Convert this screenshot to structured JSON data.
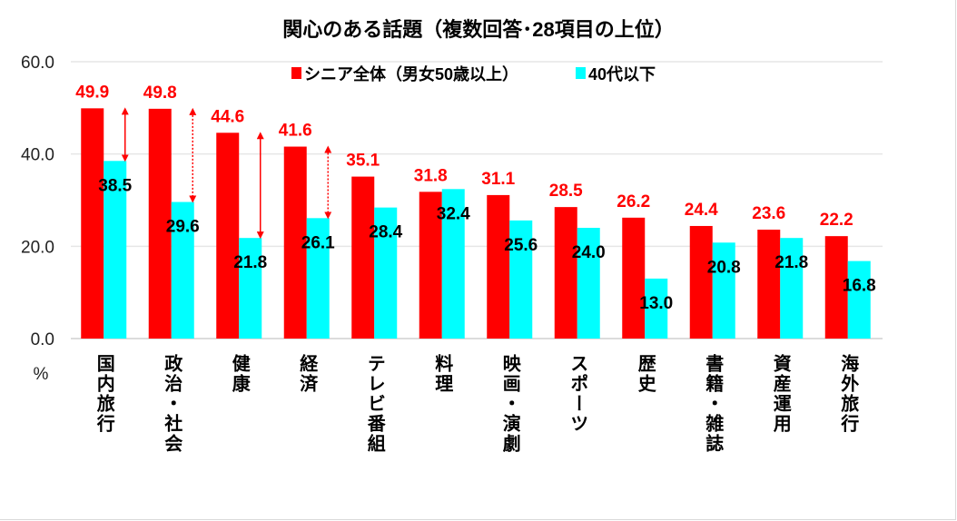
{
  "chart_data": {
    "type": "bar",
    "title": "関心のある話題（複数回答･28項目の上位）",
    "ylabel": "%",
    "ylim": [
      0,
      60
    ],
    "yticks": [
      "0.0",
      "20.0",
      "40.0",
      "60.0"
    ],
    "grid": true,
    "legend_position": "top-center",
    "categories": [
      "国内旅行",
      "政治・社会",
      "健康",
      "経済",
      "テレビ番組",
      "料理",
      "映画・演劇",
      "スポーツ",
      "歴史",
      "書籍・雑誌",
      "資産運用",
      "海外旅行"
    ],
    "series": [
      {
        "name": "シニア全体（男女50歳以上）",
        "color": "#ff0000",
        "label_color": "#ff0000",
        "values": [
          49.9,
          49.8,
          44.6,
          41.6,
          35.1,
          31.8,
          31.1,
          28.5,
          26.2,
          24.4,
          23.6,
          22.2
        ],
        "labels": [
          "49.9",
          "49.8",
          "44.6",
          "41.6",
          "35.1",
          "31.8",
          "31.1",
          "28.5",
          "26.2",
          "24.4",
          "23.6",
          "22.2"
        ]
      },
      {
        "name": "40代以下",
        "color": "#00ffff",
        "label_color": "#000000",
        "values": [
          38.5,
          29.6,
          21.8,
          26.1,
          28.4,
          32.4,
          25.6,
          24.0,
          13.0,
          20.8,
          21.8,
          16.8
        ],
        "labels": [
          "38.5",
          "29.6",
          "21.8",
          "26.1",
          "28.4",
          "32.4",
          "25.6",
          "24.0",
          "13.0",
          "20.8",
          "21.8",
          "16.8"
        ]
      }
    ],
    "annotations": [
      {
        "type": "gap-arrow",
        "category": "国内旅行",
        "style": "solid"
      },
      {
        "type": "gap-arrow",
        "category": "政治・社会",
        "style": "dotted"
      },
      {
        "type": "gap-arrow",
        "category": "健康",
        "style": "solid"
      },
      {
        "type": "gap-arrow",
        "category": "経済",
        "style": "dotted"
      }
    ]
  }
}
